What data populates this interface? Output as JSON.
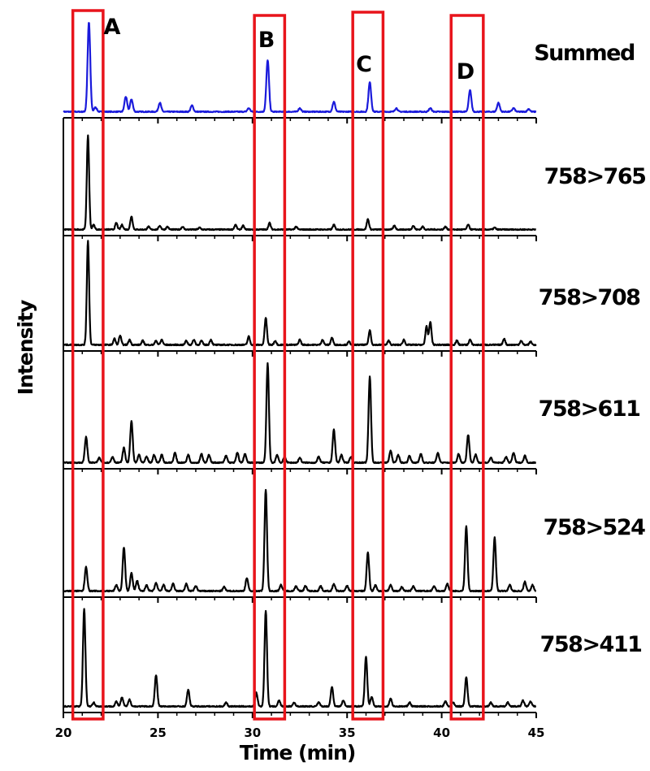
{
  "chart_data": {
    "type": "line",
    "title": "",
    "xlabel": "Time (min)",
    "ylabel": "Intensity",
    "xlim": [
      20,
      45
    ],
    "x_ticks": [
      "20",
      "25",
      "30",
      "35",
      "40",
      "45"
    ],
    "grid": false,
    "legend": "none",
    "highlight_windows": [
      {
        "label": "A",
        "x_range": [
          20.5,
          22.1
        ]
      },
      {
        "label": "B",
        "x_range": [
          30.1,
          31.7
        ]
      },
      {
        "label": "C",
        "x_range": [
          35.3,
          36.9
        ]
      },
      {
        "label": "D",
        "x_range": [
          40.5,
          42.2
        ]
      }
    ],
    "series": [
      {
        "name": "Summed",
        "color": "#1a1adb",
        "peaks": [
          [
            21.35,
            1.0
          ],
          [
            21.7,
            0.05
          ],
          [
            23.3,
            0.17
          ],
          [
            23.6,
            0.14
          ],
          [
            25.1,
            0.1
          ],
          [
            26.8,
            0.07
          ],
          [
            29.8,
            0.04
          ],
          [
            30.8,
            0.58
          ],
          [
            32.5,
            0.04
          ],
          [
            34.3,
            0.11
          ],
          [
            36.2,
            0.33
          ],
          [
            37.6,
            0.04
          ],
          [
            39.4,
            0.04
          ],
          [
            41.5,
            0.24
          ],
          [
            43.0,
            0.1
          ],
          [
            43.8,
            0.04
          ],
          [
            44.6,
            0.03
          ]
        ]
      },
      {
        "name": "758>765",
        "color": "#000000",
        "peaks": [
          [
            21.3,
            1.0
          ],
          [
            21.6,
            0.05
          ],
          [
            22.8,
            0.07
          ],
          [
            23.1,
            0.05
          ],
          [
            23.6,
            0.14
          ],
          [
            24.5,
            0.03
          ],
          [
            25.1,
            0.04
          ],
          [
            25.5,
            0.03
          ],
          [
            26.3,
            0.03
          ],
          [
            27.2,
            0.02
          ],
          [
            29.1,
            0.05
          ],
          [
            29.5,
            0.04
          ],
          [
            30.9,
            0.07
          ],
          [
            32.3,
            0.03
          ],
          [
            34.3,
            0.05
          ],
          [
            36.1,
            0.11
          ],
          [
            37.5,
            0.04
          ],
          [
            38.5,
            0.04
          ],
          [
            39.0,
            0.03
          ],
          [
            40.2,
            0.03
          ],
          [
            41.4,
            0.05
          ],
          [
            42.8,
            0.02
          ]
        ]
      },
      {
        "name": "758>708",
        "color": "#000000",
        "peaks": [
          [
            21.3,
            1.0
          ],
          [
            22.7,
            0.06
          ],
          [
            23.0,
            0.09
          ],
          [
            23.5,
            0.05
          ],
          [
            24.2,
            0.04
          ],
          [
            24.9,
            0.04
          ],
          [
            25.2,
            0.05
          ],
          [
            26.5,
            0.04
          ],
          [
            26.9,
            0.05
          ],
          [
            27.3,
            0.04
          ],
          [
            27.8,
            0.05
          ],
          [
            29.8,
            0.08
          ],
          [
            30.7,
            0.26
          ],
          [
            31.2,
            0.04
          ],
          [
            32.5,
            0.05
          ],
          [
            33.7,
            0.05
          ],
          [
            34.2,
            0.07
          ],
          [
            35.1,
            0.03
          ],
          [
            36.2,
            0.14
          ],
          [
            37.2,
            0.04
          ],
          [
            38.0,
            0.05
          ],
          [
            39.2,
            0.18
          ],
          [
            39.4,
            0.22
          ],
          [
            40.8,
            0.04
          ],
          [
            41.5,
            0.05
          ],
          [
            43.3,
            0.06
          ],
          [
            44.2,
            0.04
          ],
          [
            44.7,
            0.03
          ]
        ]
      },
      {
        "name": "758>611",
        "color": "#000000",
        "peaks": [
          [
            21.2,
            0.26
          ],
          [
            21.9,
            0.05
          ],
          [
            22.6,
            0.06
          ],
          [
            23.2,
            0.15
          ],
          [
            23.6,
            0.42
          ],
          [
            24.0,
            0.08
          ],
          [
            24.4,
            0.06
          ],
          [
            24.8,
            0.08
          ],
          [
            25.2,
            0.08
          ],
          [
            25.9,
            0.1
          ],
          [
            26.6,
            0.08
          ],
          [
            27.3,
            0.09
          ],
          [
            27.7,
            0.08
          ],
          [
            28.6,
            0.07
          ],
          [
            29.2,
            0.1
          ],
          [
            29.6,
            0.09
          ],
          [
            30.8,
            1.0
          ],
          [
            31.3,
            0.08
          ],
          [
            31.7,
            0.06
          ],
          [
            32.5,
            0.05
          ],
          [
            33.5,
            0.06
          ],
          [
            34.3,
            0.33
          ],
          [
            34.7,
            0.08
          ],
          [
            35.2,
            0.06
          ],
          [
            36.2,
            0.87
          ],
          [
            37.3,
            0.12
          ],
          [
            37.7,
            0.08
          ],
          [
            38.3,
            0.07
          ],
          [
            38.9,
            0.09
          ],
          [
            39.8,
            0.1
          ],
          [
            40.9,
            0.09
          ],
          [
            41.4,
            0.28
          ],
          [
            41.8,
            0.08
          ],
          [
            42.6,
            0.05
          ],
          [
            43.4,
            0.06
          ],
          [
            43.8,
            0.1
          ],
          [
            44.4,
            0.07
          ]
        ]
      },
      {
        "name": "758>524",
        "color": "#000000",
        "peaks": [
          [
            21.2,
            0.24
          ],
          [
            22.8,
            0.06
          ],
          [
            23.2,
            0.43
          ],
          [
            23.6,
            0.18
          ],
          [
            23.9,
            0.1
          ],
          [
            24.4,
            0.06
          ],
          [
            24.9,
            0.08
          ],
          [
            25.3,
            0.06
          ],
          [
            25.8,
            0.07
          ],
          [
            26.5,
            0.07
          ],
          [
            27.0,
            0.05
          ],
          [
            28.5,
            0.04
          ],
          [
            29.7,
            0.13
          ],
          [
            30.7,
            1.0
          ],
          [
            31.5,
            0.06
          ],
          [
            32.3,
            0.05
          ],
          [
            32.8,
            0.05
          ],
          [
            33.6,
            0.05
          ],
          [
            34.3,
            0.07
          ],
          [
            35.0,
            0.05
          ],
          [
            36.1,
            0.38
          ],
          [
            36.5,
            0.06
          ],
          [
            37.3,
            0.06
          ],
          [
            37.9,
            0.04
          ],
          [
            38.5,
            0.05
          ],
          [
            39.6,
            0.05
          ],
          [
            40.3,
            0.07
          ],
          [
            41.3,
            0.64
          ],
          [
            42.8,
            0.53
          ],
          [
            43.6,
            0.06
          ],
          [
            44.4,
            0.09
          ],
          [
            44.8,
            0.06
          ]
        ]
      },
      {
        "name": "758>411",
        "color": "#000000",
        "peaks": [
          [
            21.1,
            1.0
          ],
          [
            21.6,
            0.04
          ],
          [
            22.8,
            0.05
          ],
          [
            23.1,
            0.09
          ],
          [
            23.5,
            0.07
          ],
          [
            24.9,
            0.32
          ],
          [
            26.6,
            0.17
          ],
          [
            28.6,
            0.04
          ],
          [
            30.2,
            0.14
          ],
          [
            30.7,
            0.98
          ],
          [
            31.4,
            0.06
          ],
          [
            32.2,
            0.04
          ],
          [
            33.5,
            0.04
          ],
          [
            34.2,
            0.2
          ],
          [
            34.8,
            0.06
          ],
          [
            36.0,
            0.51
          ],
          [
            36.3,
            0.1
          ],
          [
            37.3,
            0.08
          ],
          [
            38.3,
            0.04
          ],
          [
            40.2,
            0.05
          ],
          [
            40.6,
            0.04
          ],
          [
            41.3,
            0.3
          ],
          [
            42.6,
            0.04
          ],
          [
            43.5,
            0.04
          ],
          [
            44.3,
            0.06
          ],
          [
            44.7,
            0.05
          ]
        ]
      }
    ]
  }
}
